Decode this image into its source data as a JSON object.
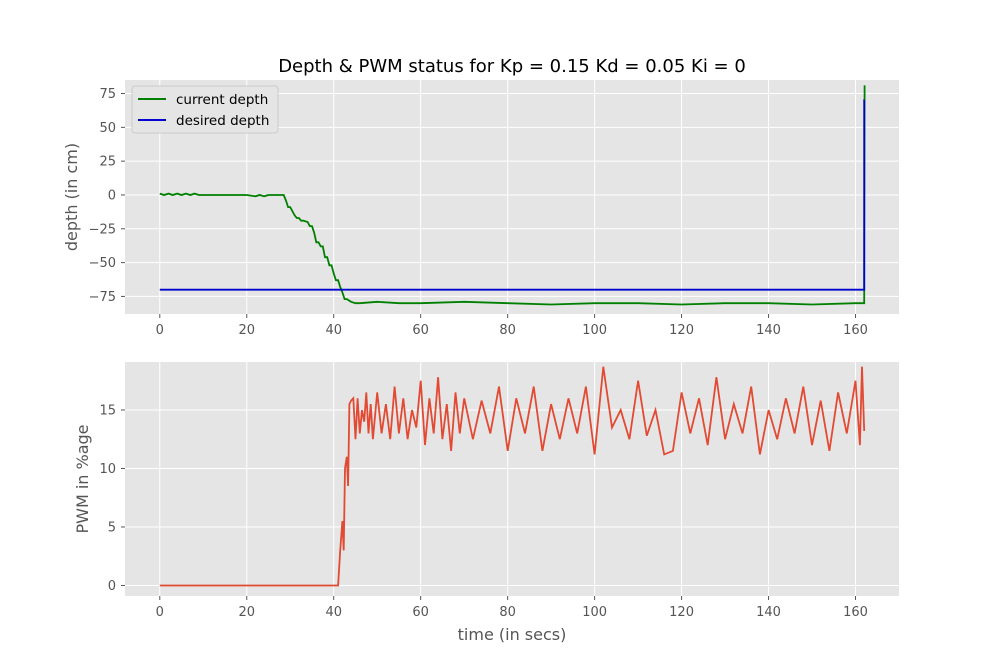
{
  "chart_data": [
    {
      "type": "line",
      "title": "Depth & PWM status for Kp = 0.15 Kd = 0.05 Ki = 0",
      "xlabel": "",
      "ylabel": "depth (in cm)",
      "xlim": [
        -8,
        170
      ],
      "ylim": [
        -88,
        85
      ],
      "xticks": [
        0,
        20,
        40,
        60,
        80,
        100,
        120,
        140,
        160
      ],
      "yticks": [
        75,
        50,
        25,
        0,
        -25,
        -50,
        -75
      ],
      "grid": true,
      "legend": "top-left",
      "series": [
        {
          "name": "current depth",
          "color": "#008000",
          "x": [
            0,
            1,
            2,
            3,
            4,
            5,
            6,
            7,
            8,
            9,
            10,
            12,
            14,
            16,
            18,
            20,
            22,
            23,
            24,
            25,
            26,
            27,
            28.5,
            29,
            29.5,
            30,
            31,
            31.5,
            32,
            32.5,
            33,
            34,
            34.5,
            35,
            35.5,
            36,
            36.5,
            37,
            37.5,
            38,
            38.5,
            39,
            39.5,
            40,
            40.5,
            41,
            41.5,
            42,
            42.5,
            43,
            44,
            45,
            46,
            50,
            55,
            60,
            70,
            80,
            90,
            100,
            110,
            120,
            130,
            140,
            150,
            160,
            161.5,
            162,
            162.1
          ],
          "y": [
            1,
            0,
            1,
            0,
            1,
            0,
            1,
            0,
            1,
            0,
            0,
            0,
            0,
            0,
            0,
            0,
            -1,
            0,
            -1,
            0,
            0,
            0,
            0,
            -4,
            -9,
            -9,
            -15,
            -17,
            -17,
            -19,
            -19,
            -20,
            -23,
            -23,
            -28,
            -35,
            -35,
            -38,
            -38,
            -46,
            -46,
            -52,
            -52,
            -58,
            -63,
            -63,
            -68,
            -72,
            -77,
            -77,
            -79,
            -80,
            -80,
            -79,
            -80,
            -80,
            -79,
            -80,
            -81,
            -80,
            -80,
            -81,
            -80,
            -80,
            -81,
            -80,
            -80,
            -80,
            81
          ]
        },
        {
          "name": "desired depth",
          "color": "#0000cc",
          "x": [
            0,
            162,
            162,
            162.1
          ],
          "y": [
            -70,
            -70,
            70,
            70
          ]
        }
      ]
    },
    {
      "type": "line",
      "title": "",
      "xlabel": "time (in secs)",
      "ylabel": "PWM in %age",
      "xlim": [
        -8,
        170
      ],
      "ylim": [
        -0.9,
        19.1
      ],
      "xticks": [
        0,
        20,
        40,
        60,
        80,
        100,
        120,
        140,
        160
      ],
      "yticks": [
        15,
        10,
        5,
        0
      ],
      "grid": true,
      "series": [
        {
          "name": "",
          "color": "#e24a33",
          "x": [
            0,
            40,
            41,
            41.5,
            42,
            42.3,
            42.6,
            43,
            43.3,
            43.6,
            44,
            44.5,
            45,
            45.5,
            46,
            46.5,
            47,
            47.5,
            48,
            48.5,
            49,
            50,
            51,
            52,
            53,
            54,
            55,
            56,
            57,
            58,
            59,
            60,
            61,
            62,
            63,
            64,
            65,
            66,
            67,
            68,
            69,
            70,
            72,
            74,
            76,
            78,
            80,
            82,
            84,
            86,
            88,
            90,
            92,
            94,
            96,
            98,
            100,
            102,
            104,
            106,
            108,
            110,
            112,
            114,
            116,
            118,
            120,
            122,
            124,
            126,
            128,
            130,
            132,
            134,
            136,
            138,
            140,
            142,
            144,
            146,
            148,
            150,
            152,
            154,
            156,
            158,
            160,
            161,
            161.5,
            162
          ],
          "y": [
            0,
            0,
            0,
            3,
            5.5,
            3,
            10,
            11,
            8.5,
            15.5,
            15.8,
            16,
            12.5,
            16,
            13,
            15,
            14,
            16.5,
            13,
            15.5,
            12.5,
            16.5,
            13,
            15.5,
            12.5,
            17,
            13,
            16,
            12.5,
            15,
            13.5,
            17.5,
            12,
            16,
            13,
            17.8,
            12.5,
            15.5,
            11.5,
            16.5,
            13,
            16,
            12.5,
            15.8,
            13,
            17,
            11.5,
            16,
            13,
            17,
            11.5,
            15.5,
            12.5,
            16,
            13,
            17,
            11.2,
            18.7,
            13.5,
            15,
            12.5,
            17.5,
            12.8,
            15,
            11.2,
            11.5,
            16.5,
            13,
            16,
            12,
            17.8,
            12.5,
            15.5,
            13,
            17,
            11.2,
            15,
            12.5,
            16,
            13,
            17,
            12,
            15.8,
            11.5,
            16.5,
            13,
            17.5,
            12,
            18.7,
            13.2
          ]
        }
      ]
    }
  ]
}
